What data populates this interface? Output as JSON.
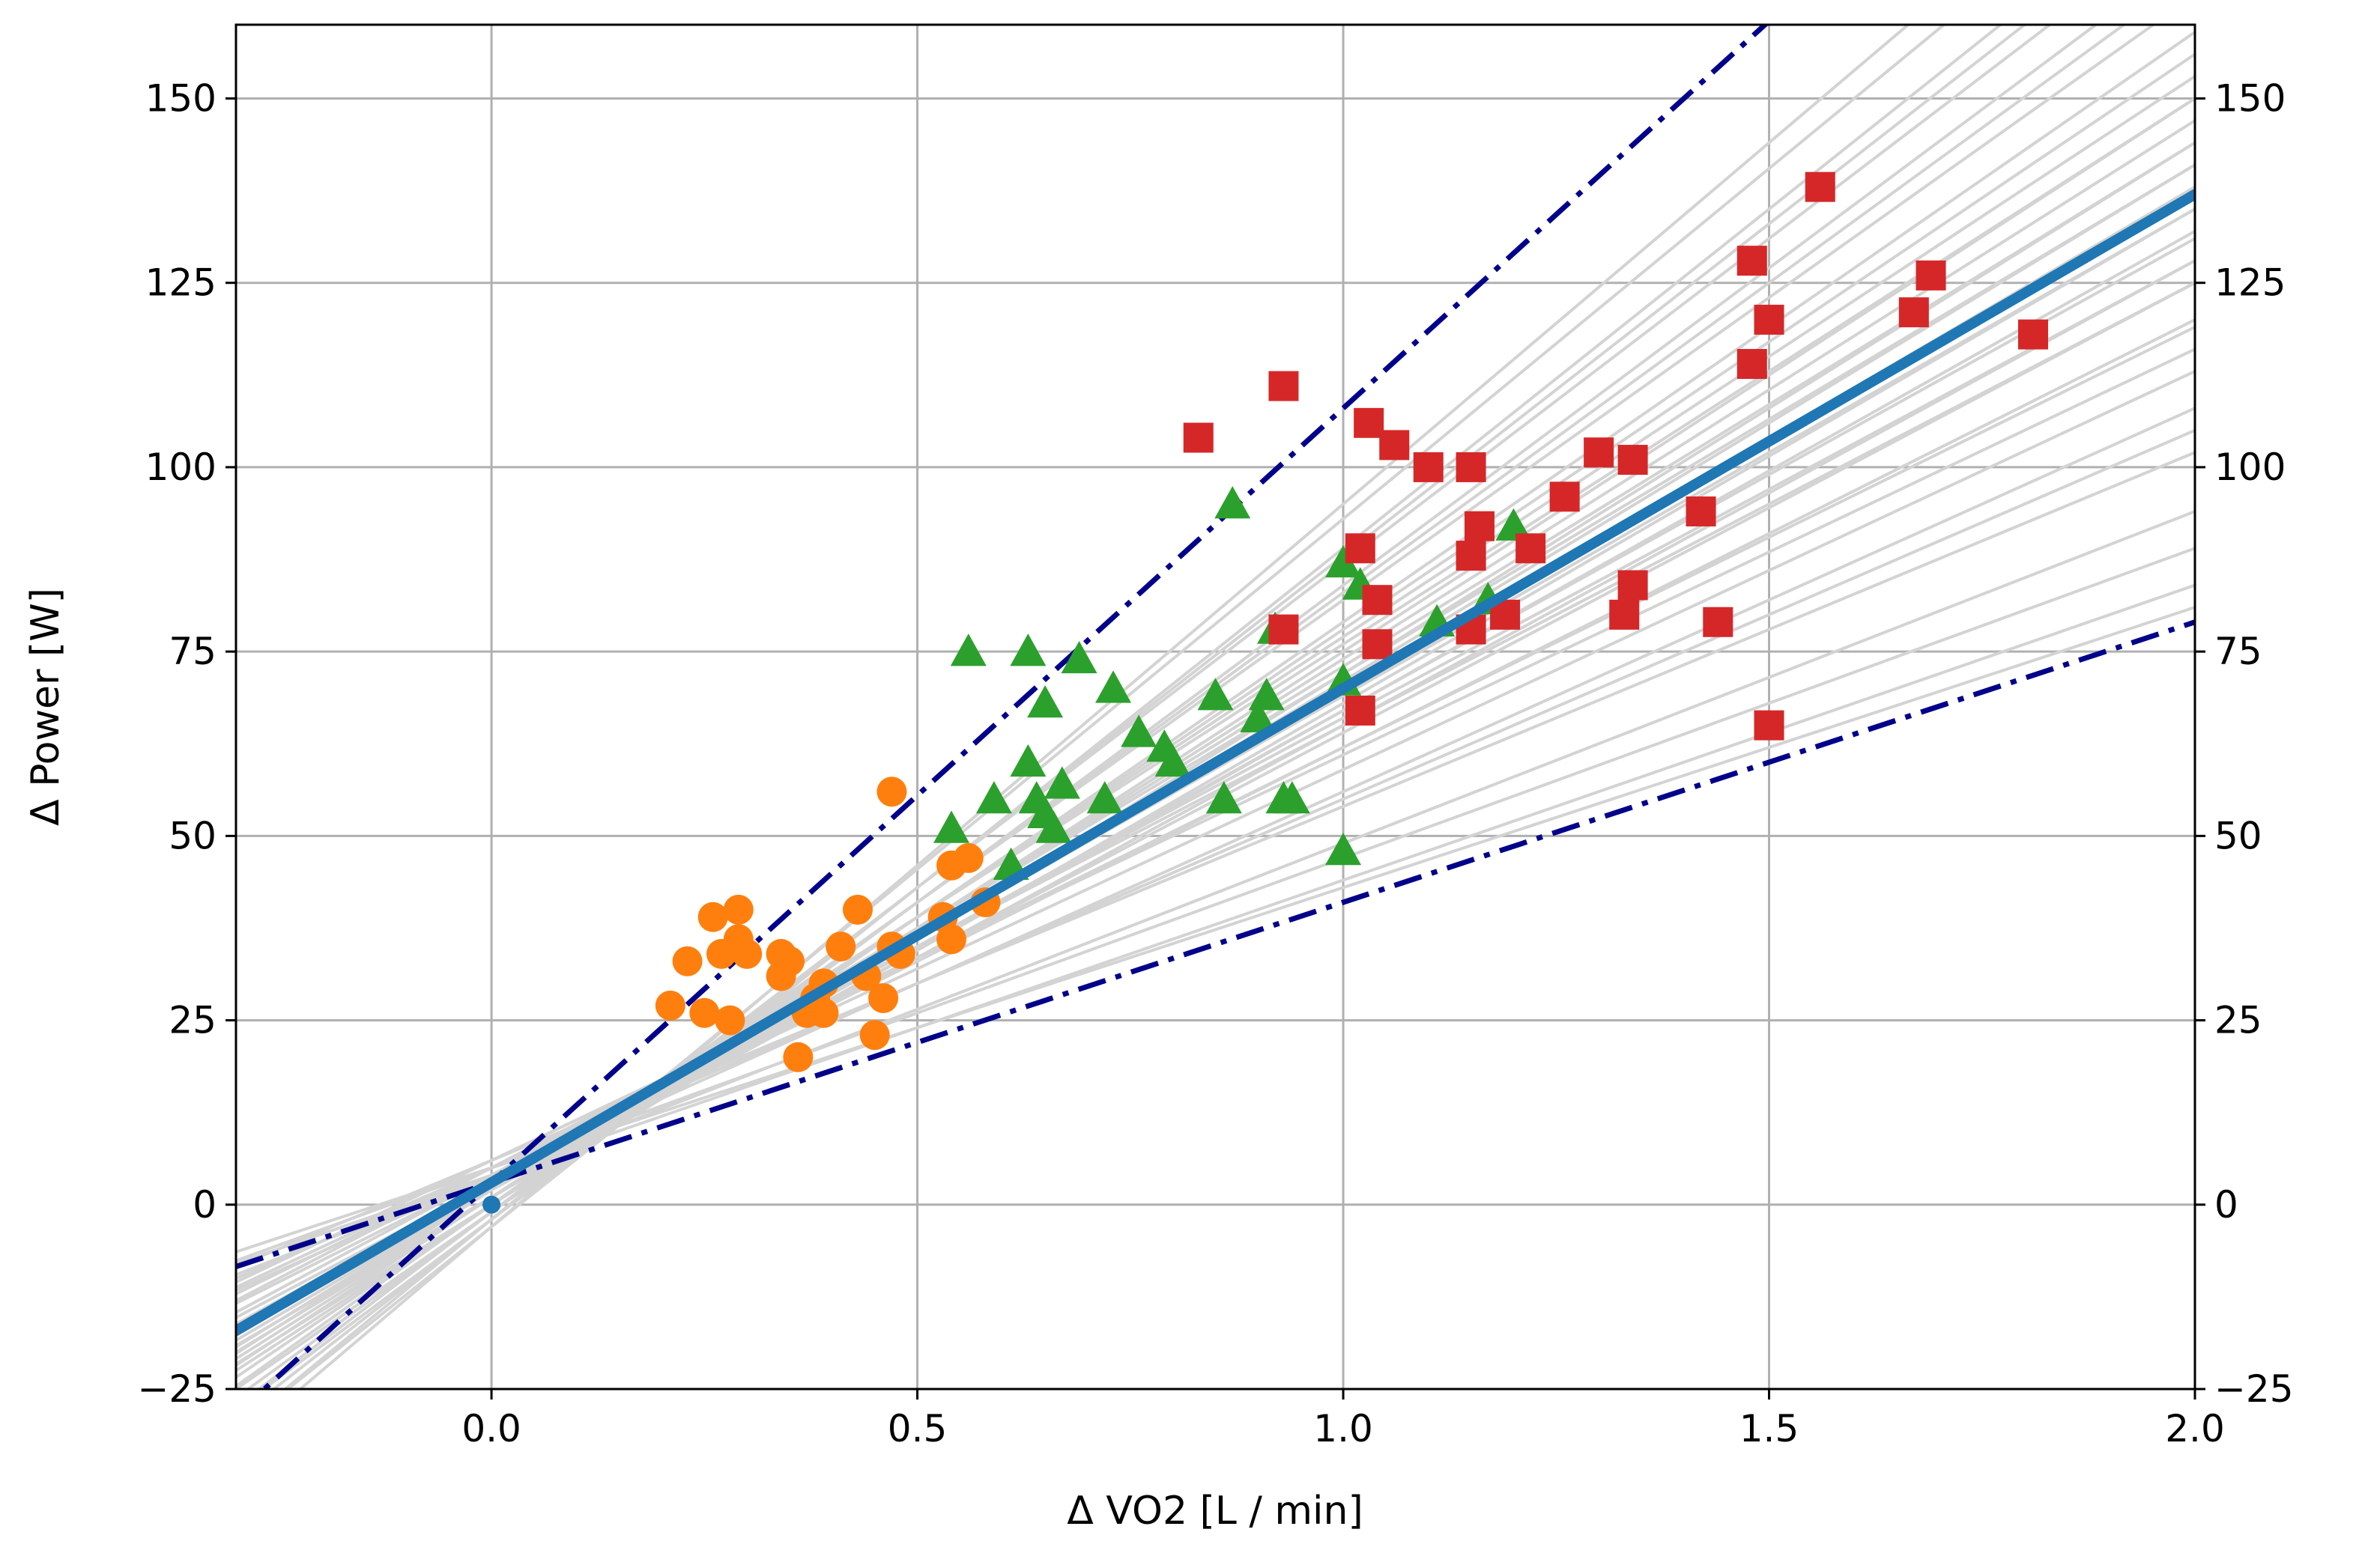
{
  "chart_data": {
    "type": "scatter",
    "title": "",
    "xlabel": "Δ VO2 [L / min]",
    "ylabel": "Δ Power [W]",
    "xlim": [
      -0.3,
      2.0
    ],
    "ylim": [
      -25,
      160
    ],
    "x_ticks": [
      0.0,
      0.5,
      1.0,
      1.5,
      2.0
    ],
    "x_tick_labels": [
      "0.0",
      "0.5",
      "1.0",
      "1.5",
      "2.0"
    ],
    "y_ticks": [
      -25,
      0,
      25,
      50,
      75,
      100,
      125,
      150
    ],
    "y_tick_labels": [
      "−25",
      "0",
      "25",
      "50",
      "75",
      "100",
      "125",
      "150"
    ],
    "right_axis_labels": true,
    "grid": true,
    "legend": "none",
    "colors": {
      "circles": "#ff7f0e",
      "triangles": "#2ca02c",
      "squares": "#d62728",
      "fit_line": "#1f77b4",
      "bound_lines": "#00008b",
      "bootstrap_lines": "#d3d3d3"
    },
    "fit_line": {
      "slope": 67,
      "intercept": 3
    },
    "bound_lines": [
      {
        "slope": 105,
        "intercept": 3
      },
      {
        "slope": 38,
        "intercept": 3
      }
    ],
    "bootstrap_lines": [
      {
        "slope": 38,
        "intercept": 5
      },
      {
        "slope": 40,
        "intercept": 4
      },
      {
        "slope": 42,
        "intercept": 5
      },
      {
        "slope": 45,
        "intercept": 4
      },
      {
        "slope": 48,
        "intercept": 6
      },
      {
        "slope": 50,
        "intercept": 5
      },
      {
        "slope": 52,
        "intercept": 4
      },
      {
        "slope": 54,
        "intercept": 5
      },
      {
        "slope": 55,
        "intercept": 6
      },
      {
        "slope": 57,
        "intercept": 5
      },
      {
        "slope": 58,
        "intercept": 4
      },
      {
        "slope": 60,
        "intercept": 5
      },
      {
        "slope": 61,
        "intercept": 3
      },
      {
        "slope": 62,
        "intercept": 4
      },
      {
        "slope": 63,
        "intercept": 2
      },
      {
        "slope": 64,
        "intercept": 3
      },
      {
        "slope": 65,
        "intercept": 2
      },
      {
        "slope": 66,
        "intercept": 3
      },
      {
        "slope": 67,
        "intercept": 1
      },
      {
        "slope": 68,
        "intercept": 2
      },
      {
        "slope": 69,
        "intercept": 3
      },
      {
        "slope": 70,
        "intercept": 1
      },
      {
        "slope": 71,
        "intercept": 2
      },
      {
        "slope": 72,
        "intercept": 0
      },
      {
        "slope": 73,
        "intercept": 1
      },
      {
        "slope": 74,
        "intercept": 2
      },
      {
        "slope": 75,
        "intercept": 0
      },
      {
        "slope": 76,
        "intercept": 1
      },
      {
        "slope": 78,
        "intercept": 0
      },
      {
        "slope": 80,
        "intercept": -1
      },
      {
        "slope": 82,
        "intercept": 0
      },
      {
        "slope": 84,
        "intercept": -1
      },
      {
        "slope": 86,
        "intercept": -2
      },
      {
        "slope": 88,
        "intercept": -1
      },
      {
        "slope": 90,
        "intercept": -2
      },
      {
        "slope": 92,
        "intercept": -3
      },
      {
        "slope": 95,
        "intercept": -2
      },
      {
        "slope": 98,
        "intercept": -3
      }
    ],
    "origin_point": {
      "x": 0.0,
      "y": 0.0
    },
    "series": [
      {
        "marker": "circle",
        "points": [
          [
            0.21,
            27
          ],
          [
            0.23,
            33
          ],
          [
            0.25,
            26
          ],
          [
            0.26,
            39
          ],
          [
            0.27,
            34
          ],
          [
            0.28,
            25
          ],
          [
            0.29,
            40
          ],
          [
            0.29,
            36
          ],
          [
            0.3,
            34
          ],
          [
            0.34,
            34
          ],
          [
            0.34,
            31
          ],
          [
            0.35,
            33
          ],
          [
            0.36,
            20
          ],
          [
            0.37,
            26
          ],
          [
            0.38,
            28
          ],
          [
            0.39,
            30
          ],
          [
            0.39,
            26
          ],
          [
            0.41,
            35
          ],
          [
            0.43,
            40
          ],
          [
            0.44,
            31
          ],
          [
            0.45,
            23
          ],
          [
            0.46,
            28
          ],
          [
            0.47,
            56
          ],
          [
            0.47,
            35
          ],
          [
            0.48,
            34
          ],
          [
            0.53,
            39
          ],
          [
            0.54,
            36
          ],
          [
            0.54,
            46
          ],
          [
            0.56,
            47
          ],
          [
            0.58,
            41
          ]
        ]
      },
      {
        "marker": "triangle",
        "points": [
          [
            0.54,
            51
          ],
          [
            0.56,
            75
          ],
          [
            0.59,
            55
          ],
          [
            0.61,
            46
          ],
          [
            0.63,
            60
          ],
          [
            0.63,
            75
          ],
          [
            0.64,
            55
          ],
          [
            0.65,
            68
          ],
          [
            0.65,
            53
          ],
          [
            0.66,
            51
          ],
          [
            0.67,
            57
          ],
          [
            0.69,
            74
          ],
          [
            0.72,
            55
          ],
          [
            0.73,
            70
          ],
          [
            0.76,
            64
          ],
          [
            0.79,
            62
          ],
          [
            0.8,
            60
          ],
          [
            0.85,
            69
          ],
          [
            0.86,
            55
          ],
          [
            0.87,
            95
          ],
          [
            0.9,
            66
          ],
          [
            0.91,
            69
          ],
          [
            0.92,
            78
          ],
          [
            0.93,
            55
          ],
          [
            0.94,
            55
          ],
          [
            1.0,
            48
          ],
          [
            1.0,
            71
          ],
          [
            1.0,
            87
          ],
          [
            1.02,
            84
          ],
          [
            1.11,
            79
          ],
          [
            1.17,
            82
          ],
          [
            1.2,
            92
          ]
        ]
      },
      {
        "marker": "square",
        "points": [
          [
            0.83,
            104
          ],
          [
            0.93,
            111
          ],
          [
            0.93,
            78
          ],
          [
            1.02,
            67
          ],
          [
            1.02,
            89
          ],
          [
            1.03,
            106
          ],
          [
            1.04,
            76
          ],
          [
            1.04,
            82
          ],
          [
            1.06,
            103
          ],
          [
            1.1,
            100
          ],
          [
            1.15,
            78
          ],
          [
            1.15,
            100
          ],
          [
            1.15,
            88
          ],
          [
            1.16,
            92
          ],
          [
            1.19,
            80
          ],
          [
            1.22,
            89
          ],
          [
            1.26,
            96
          ],
          [
            1.3,
            102
          ],
          [
            1.33,
            80
          ],
          [
            1.34,
            101
          ],
          [
            1.34,
            84
          ],
          [
            1.42,
            94
          ],
          [
            1.44,
            79
          ],
          [
            1.48,
            114
          ],
          [
            1.48,
            128
          ],
          [
            1.5,
            120
          ],
          [
            1.5,
            65
          ],
          [
            1.56,
            138
          ],
          [
            1.67,
            121
          ],
          [
            1.69,
            126
          ],
          [
            1.81,
            118
          ]
        ]
      }
    ]
  }
}
